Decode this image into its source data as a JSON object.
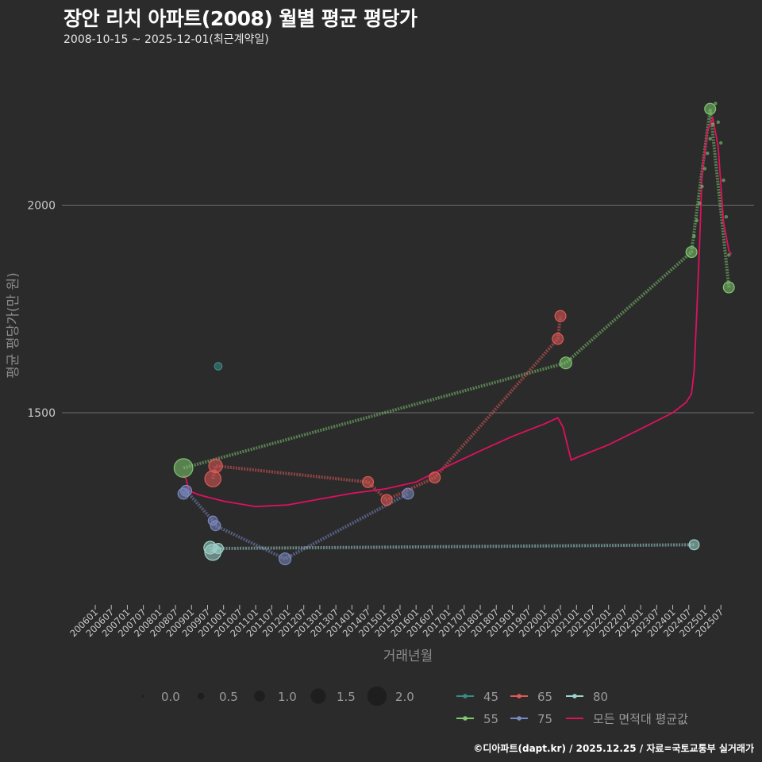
{
  "title": "장안 리치 아파트(2008) 월별 평균 평당가",
  "subtitle": "2008-10-15 ~ 2025-12-01(최근계약일)",
  "caption": "©디아파트(dapt.kr) / 2025.12.25 / 자료=국토교통부 실거래가",
  "chart_data": {
    "type": "scatter",
    "title": "장안 리치 아파트(2008) 월별 평균 평당가",
    "xlabel": "거래년월",
    "ylabel": "평균 평당가(만 원)",
    "x_ticks": [
      "200601",
      "200607",
      "200701",
      "200707",
      "200801",
      "200807",
      "200901",
      "200907",
      "201001",
      "201007",
      "201101",
      "201107",
      "201201",
      "201207",
      "201301",
      "201307",
      "201401",
      "201407",
      "201501",
      "201507",
      "201601",
      "201607",
      "201701",
      "201707",
      "201801",
      "201807",
      "201901",
      "201907",
      "202001",
      "202007",
      "202101",
      "202107",
      "202201",
      "202207",
      "202301",
      "202307",
      "202401",
      "202407",
      "202501",
      "202507"
    ],
    "y_ticks": [
      1500,
      2000
    ],
    "ylim": [
      1020,
      2260
    ],
    "x_range_months": [
      "200601",
      "202512"
    ],
    "size_legend": {
      "values": [
        0.0,
        0.5,
        1.0,
        1.5,
        2.0
      ],
      "labels": [
        "0.0",
        "0.5",
        "1.0",
        "1.5",
        "2.0"
      ]
    },
    "series": [
      {
        "name": "45",
        "color": "#3a8a87",
        "points": [
          {
            "x": "200911",
            "y": 1612,
            "size": 0.6
          }
        ]
      },
      {
        "name": "55",
        "color": "#7fc870",
        "points": [
          {
            "x": "200810",
            "y": 1367,
            "size": 1.9
          },
          {
            "x": "202009",
            "y": 1620,
            "size": 1.1
          },
          {
            "x": "202408",
            "y": 1887,
            "size": 1.0
          },
          {
            "x": "202510",
            "y": 1802,
            "size": 1.0
          },
          {
            "x": "202503",
            "y": 2232,
            "size": 1.0
          }
        ]
      },
      {
        "name": "65",
        "color": "#e05a55",
        "points": [
          {
            "x": "200910",
            "y": 1372,
            "size": 1.3
          },
          {
            "x": "200909",
            "y": 1341,
            "size": 1.6
          },
          {
            "x": "201407",
            "y": 1333,
            "size": 1.0
          },
          {
            "x": "201502",
            "y": 1290,
            "size": 1.0
          },
          {
            "x": "201608",
            "y": 1344,
            "size": 1.0
          },
          {
            "x": "202006",
            "y": 1678,
            "size": 1.0
          },
          {
            "x": "202007",
            "y": 1733,
            "size": 1.0
          }
        ]
      },
      {
        "name": "75",
        "color": "#7a89c0",
        "points": [
          {
            "x": "200811",
            "y": 1312,
            "size": 1.0
          },
          {
            "x": "200810",
            "y": 1305,
            "size": 1.0
          },
          {
            "x": "200909",
            "y": 1240,
            "size": 0.8
          },
          {
            "x": "200910",
            "y": 1228,
            "size": 0.9
          },
          {
            "x": "201112",
            "y": 1148,
            "size": 1.1
          },
          {
            "x": "201510",
            "y": 1305,
            "size": 1.0
          }
        ]
      },
      {
        "name": "80",
        "color": "#9fd4cc",
        "points": [
          {
            "x": "200908",
            "y": 1175,
            "size": 1.2
          },
          {
            "x": "200909",
            "y": 1164,
            "size": 1.6
          },
          {
            "x": "200911",
            "y": 1173,
            "size": 0.9
          },
          {
            "x": "202409",
            "y": 1182,
            "size": 0.9
          }
        ]
      },
      {
        "name": "모든 면적대 평균값",
        "color": "#e0105e",
        "type": "line",
        "points": [
          {
            "x": "200810",
            "y": 1350
          },
          {
            "x": "200811",
            "y": 1340
          },
          {
            "x": "200812",
            "y": 1312
          },
          {
            "x": "200904",
            "y": 1302
          },
          {
            "x": "200907",
            "y": 1297
          },
          {
            "x": "201001",
            "y": 1287
          },
          {
            "x": "201101",
            "y": 1274
          },
          {
            "x": "201201",
            "y": 1278
          },
          {
            "x": "201301",
            "y": 1292
          },
          {
            "x": "201401",
            "y": 1306
          },
          {
            "x": "201501",
            "y": 1316
          },
          {
            "x": "201601",
            "y": 1333
          },
          {
            "x": "201701",
            "y": 1372
          },
          {
            "x": "201801",
            "y": 1408
          },
          {
            "x": "201901",
            "y": 1443
          },
          {
            "x": "202001",
            "y": 1473
          },
          {
            "x": "202006",
            "y": 1488
          },
          {
            "x": "202008",
            "y": 1465
          },
          {
            "x": "202011",
            "y": 1386
          },
          {
            "x": "202101",
            "y": 1392
          },
          {
            "x": "202201",
            "y": 1423
          },
          {
            "x": "202301",
            "y": 1461
          },
          {
            "x": "202401",
            "y": 1500
          },
          {
            "x": "202406",
            "y": 1525
          },
          {
            "x": "202408",
            "y": 1545
          },
          {
            "x": "202409",
            "y": 1600
          },
          {
            "x": "202410",
            "y": 1740
          },
          {
            "x": "202411",
            "y": 1900
          },
          {
            "x": "202412",
            "y": 2080
          },
          {
            "x": "202502",
            "y": 2180
          },
          {
            "x": "202504",
            "y": 2210
          },
          {
            "x": "202506",
            "y": 2140
          },
          {
            "x": "202508",
            "y": 1960
          },
          {
            "x": "202510",
            "y": 1890
          },
          {
            "x": "202511",
            "y": 1882
          }
        ]
      }
    ]
  }
}
